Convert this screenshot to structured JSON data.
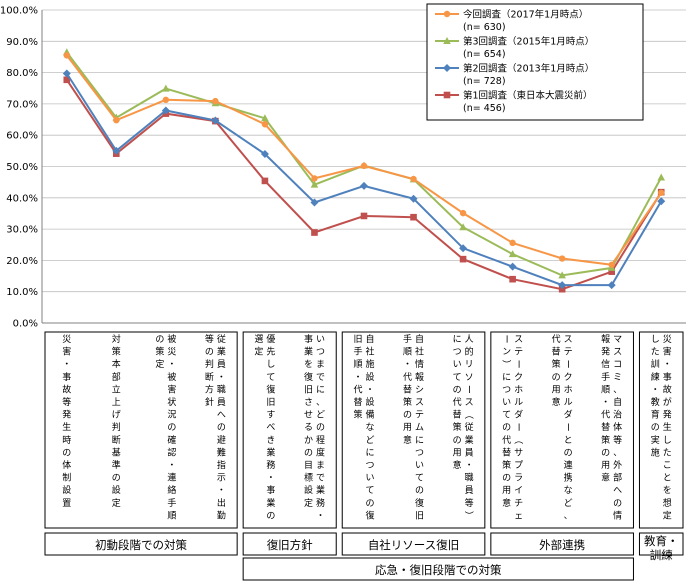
{
  "chart_data": {
    "type": "line",
    "ylim": [
      0,
      100
    ],
    "y_ticks": [
      "0.0%",
      "10.0%",
      "20.0%",
      "30.0%",
      "40.0%",
      "50.0%",
      "60.0%",
      "70.0%",
      "80.0%",
      "90.0%",
      "100.0%"
    ],
    "grid": true,
    "legend_position": "top-right",
    "categories": [
      "災害・事故等発生時の体制設置",
      "対策本部立上げ判断基準の設定",
      "被災・被害状況の確認・連絡手順の策定",
      "従業員・職員への避難指示・出勤等の判断方針",
      "優先して復旧すべき業務・事業の選定",
      "いつまでに、どの程度まで業務・事業を復旧させるかの目標設定",
      "自社施設・設備などについての復旧手順・代替策",
      "自社情報システムについての復旧手順・代替策の用意",
      "人的リソース（従業員・職員等）についての代替策の用意",
      "ステークホルダー（サプライチェーン）についての代替策の用意",
      "ステークホルダーとの連携など、代替策の用意",
      "マスコミ、自治体等、外部への情報発信手順・代替策の用意",
      "災害・事故が発生したことを想定した訓練・教育の実施"
    ],
    "series": [
      {
        "name": "今回調査（2017年1月時点）",
        "n_label": "(n= 630)",
        "color": "#f79646",
        "values": [
          85.5,
          64.8,
          71.3,
          70.9,
          63.5,
          46.2,
          50.2,
          46.0,
          35.1,
          25.6,
          20.6,
          18.6,
          41.6
        ]
      },
      {
        "name": "第3回調査（2015年1月時点）",
        "n_label": "(n= 654)",
        "color": "#9bbb59",
        "values": [
          86.5,
          65.6,
          74.9,
          70.2,
          65.4,
          44.2,
          50.3,
          45.9,
          30.6,
          22.0,
          15.2,
          17.6,
          46.5
        ]
      },
      {
        "name": "第2回調査（2013年1月時点）",
        "n_label": "(n= 728)",
        "color": "#4f81bd",
        "values": [
          79.7,
          55.0,
          67.9,
          64.7,
          54.0,
          38.5,
          43.8,
          39.7,
          23.9,
          18.0,
          12.1,
          12.1,
          38.9
        ]
      },
      {
        "name": "第1回調査（東日本大震災前）",
        "n_label": "(n= 456)",
        "color": "#c0504d",
        "values": [
          77.7,
          54.1,
          66.9,
          64.5,
          45.4,
          28.9,
          34.2,
          33.8,
          20.4,
          14.0,
          10.8,
          16.4,
          41.8
        ]
      }
    ],
    "groups": [
      {
        "label": "初動段階での対策",
        "start": 0,
        "end": 3
      },
      {
        "label": "復旧方針",
        "start": 4,
        "end": 5
      },
      {
        "label": "自社リソース復旧",
        "start": 6,
        "end": 8
      },
      {
        "label": "外部連携",
        "start": 9,
        "end": 11
      },
      {
        "label": "教育・訓練",
        "start": 12,
        "end": 12
      }
    ],
    "super_group": {
      "label": "応急・復旧段階での対策",
      "start": 4,
      "end": 11
    }
  }
}
